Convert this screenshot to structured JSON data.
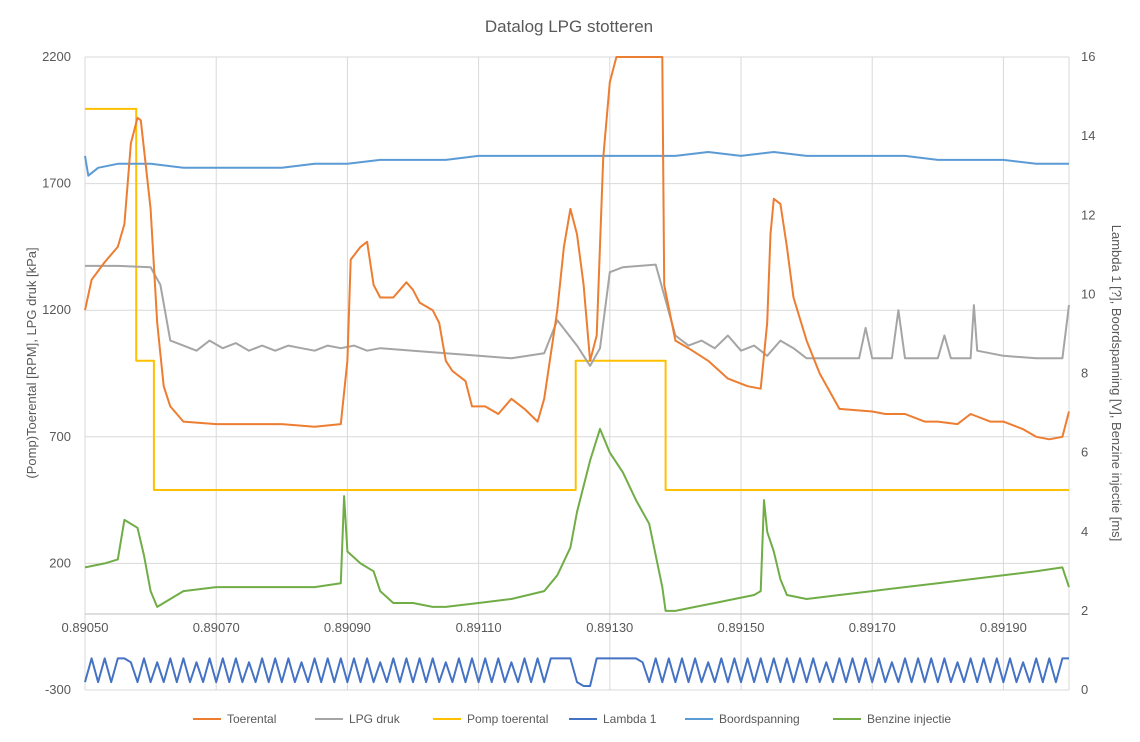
{
  "chart_data": {
    "type": "line",
    "title": "Datalog LPG stotteren",
    "ylabel_left": "(Pomp)Toerental [RPM], LPG druk [kPa]",
    "ylabel_right": "Lambda 1 [?], Boordspanning [V], Benzine injectie [ms]",
    "xlim": [
      0.8905,
      0.892
    ],
    "ylim_left": [
      -300,
      2200
    ],
    "ylim_right": [
      0,
      16
    ],
    "left_ticks": [
      "-300",
      "200",
      "700",
      "1200",
      "1700",
      "2200"
    ],
    "right_ticks": [
      "0",
      "2",
      "4",
      "6",
      "8",
      "10",
      "12",
      "14",
      "16"
    ],
    "x_ticks": [
      "0.89050",
      "0.89070",
      "0.89090",
      "0.89110",
      "0.89130",
      "0.89150",
      "0.89170",
      "0.89190"
    ],
    "grid": true,
    "legend_position": "bottom",
    "series": [
      {
        "name": "Toerental",
        "axis": "left",
        "color": "#ED7D31",
        "x": [
          0.8905,
          0.89051,
          0.89053,
          0.89055,
          0.89056,
          0.89057,
          0.89058,
          0.890585,
          0.8906,
          0.89061,
          0.89062,
          0.89063,
          0.89065,
          0.8907,
          0.8908,
          0.89085,
          0.89089,
          0.8909,
          0.890905,
          0.89092,
          0.89093,
          0.89094,
          0.89095,
          0.89097,
          0.89099,
          0.891,
          0.89101,
          0.89103,
          0.89104,
          0.89105,
          0.89106,
          0.89108,
          0.89109,
          0.89111,
          0.89113,
          0.89115,
          0.89117,
          0.89119,
          0.8912,
          0.89122,
          0.89123,
          0.89124,
          0.89125,
          0.89126,
          0.89127,
          0.89128,
          0.89129,
          0.8913,
          0.89131,
          0.89132,
          0.89134,
          0.89136,
          0.89138,
          0.891383,
          0.8914,
          0.89142,
          0.89145,
          0.89148,
          0.89151,
          0.89153,
          0.89154,
          0.891545,
          0.89155,
          0.89156,
          0.89157,
          0.89158,
          0.8916,
          0.89162,
          0.89165,
          0.8917,
          0.89172,
          0.89175,
          0.89178,
          0.8918,
          0.89183,
          0.89185,
          0.89188,
          0.8919,
          0.89193,
          0.89195,
          0.89197,
          0.89199,
          0.892
        ],
        "y": [
          1200,
          1320,
          1390,
          1450,
          1540,
          1860,
          1960,
          1950,
          1600,
          1150,
          900,
          820,
          760,
          750,
          750,
          740,
          750,
          1000,
          1400,
          1450,
          1470,
          1300,
          1250,
          1250,
          1310,
          1280,
          1230,
          1200,
          1150,
          1000,
          960,
          920,
          820,
          820,
          790,
          850,
          810,
          760,
          850,
          1200,
          1450,
          1600,
          1500,
          1300,
          1000,
          1100,
          1800,
          2100,
          2200,
          2200,
          2200,
          2200,
          2200,
          1300,
          1080,
          1050,
          1000,
          930,
          900,
          890,
          1150,
          1500,
          1640,
          1620,
          1450,
          1250,
          1080,
          950,
          810,
          800,
          790,
          790,
          760,
          760,
          750,
          790,
          760,
          760,
          730,
          700,
          690,
          700,
          800
        ]
      },
      {
        "name": "LPG druk",
        "axis": "left",
        "color": "#A5A5A5",
        "x": [
          0.8905,
          0.89055,
          0.8906,
          0.890615,
          0.89063,
          0.89065,
          0.89067,
          0.89069,
          0.89071,
          0.89073,
          0.89075,
          0.89077,
          0.89079,
          0.89081,
          0.89083,
          0.89085,
          0.89087,
          0.89089,
          0.89091,
          0.89093,
          0.89095,
          0.891,
          0.89105,
          0.8911,
          0.89115,
          0.8912,
          0.89122,
          0.89125,
          0.89127,
          0.891285,
          0.8913,
          0.89132,
          0.89137,
          0.8914,
          0.89142,
          0.89144,
          0.89146,
          0.89148,
          0.8915,
          0.89152,
          0.89154,
          0.89156,
          0.89158,
          0.8916,
          0.89165,
          0.89168,
          0.89169,
          0.8917,
          0.89173,
          0.89174,
          0.89175,
          0.8918,
          0.89181,
          0.89182,
          0.89185,
          0.891855,
          0.89186,
          0.8919,
          0.89195,
          0.89199,
          0.892
        ],
        "y": [
          1375,
          1375,
          1370,
          1300,
          1080,
          1060,
          1040,
          1080,
          1050,
          1070,
          1040,
          1060,
          1040,
          1060,
          1050,
          1040,
          1060,
          1050,
          1060,
          1040,
          1050,
          1040,
          1030,
          1020,
          1010,
          1030,
          1160,
          1060,
          980,
          1050,
          1350,
          1370,
          1380,
          1100,
          1060,
          1080,
          1050,
          1100,
          1040,
          1060,
          1020,
          1080,
          1050,
          1010,
          1010,
          1010,
          1130,
          1010,
          1010,
          1200,
          1010,
          1010,
          1100,
          1010,
          1010,
          1220,
          1040,
          1020,
          1010,
          1010,
          1220
        ]
      },
      {
        "name": "Pomp toerental",
        "axis": "left",
        "color": "#FFC000",
        "x": [
          0.8905,
          0.890578,
          0.890578,
          0.890605,
          0.890605,
          0.891248,
          0.891248,
          0.891385,
          0.891385,
          0.892
        ],
        "y": [
          1995,
          1995,
          1000,
          1000,
          490,
          490,
          1000,
          1000,
          490,
          490
        ]
      },
      {
        "name": "Lambda 1",
        "axis": "right",
        "color": "#4472C4",
        "x": [
          0.8905,
          0.89051,
          0.89052,
          0.89053,
          0.89054,
          0.89055,
          0.89056,
          0.89057,
          0.89058,
          0.89059,
          0.8906,
          0.89061,
          0.89062,
          0.89063,
          0.89064,
          0.89065,
          0.89066,
          0.89067,
          0.89068,
          0.89069,
          0.8907,
          0.89071,
          0.89072,
          0.89073,
          0.89074,
          0.89075,
          0.89076,
          0.89077,
          0.89078,
          0.89079,
          0.8908,
          0.89081,
          0.89082,
          0.89083,
          0.89084,
          0.89085,
          0.89086,
          0.89087,
          0.89088,
          0.89089,
          0.8909,
          0.89091,
          0.89092,
          0.89093,
          0.89094,
          0.89095,
          0.89096,
          0.89097,
          0.89098,
          0.89099,
          0.891,
          0.89101,
          0.89102,
          0.89103,
          0.89104,
          0.89105,
          0.89106,
          0.89107,
          0.89108,
          0.89109,
          0.8911,
          0.89111,
          0.89112,
          0.89113,
          0.89114,
          0.89115,
          0.89116,
          0.89117,
          0.89118,
          0.89119,
          0.8912,
          0.89121,
          0.89122,
          0.89123,
          0.89124,
          0.89125,
          0.89126,
          0.89127,
          0.89128,
          0.89129,
          0.8913,
          0.89131,
          0.89132,
          0.89133,
          0.89134,
          0.89135,
          0.89136,
          0.89137,
          0.89138,
          0.89139,
          0.8914,
          0.89141,
          0.89142,
          0.89143,
          0.89144,
          0.89145,
          0.89146,
          0.89147,
          0.89148,
          0.89149,
          0.8915,
          0.89151,
          0.89152,
          0.89153,
          0.89154,
          0.89155,
          0.89156,
          0.89157,
          0.89158,
          0.89159,
          0.8916,
          0.89161,
          0.89162,
          0.89163,
          0.89164,
          0.89165,
          0.89166,
          0.89167,
          0.89168,
          0.89169,
          0.8917,
          0.89171,
          0.89172,
          0.89173,
          0.89174,
          0.89175,
          0.89176,
          0.89177,
          0.89178,
          0.89179,
          0.8918,
          0.89181,
          0.89182,
          0.89183,
          0.89184,
          0.89185,
          0.89186,
          0.89187,
          0.89188,
          0.89189,
          0.8919,
          0.89191,
          0.89192,
          0.89193,
          0.89194,
          0.89195,
          0.89196,
          0.89197,
          0.89198,
          0.89199,
          0.892
        ],
        "y": [
          0.2,
          0.8,
          0.2,
          0.8,
          0.2,
          0.8,
          0.8,
          0.7,
          0.2,
          0.8,
          0.2,
          0.7,
          0.2,
          0.8,
          0.2,
          0.8,
          0.2,
          0.7,
          0.2,
          0.8,
          0.2,
          0.8,
          0.2,
          0.8,
          0.2,
          0.7,
          0.2,
          0.8,
          0.2,
          0.8,
          0.2,
          0.8,
          0.2,
          0.7,
          0.2,
          0.8,
          0.2,
          0.8,
          0.2,
          0.8,
          0.2,
          0.8,
          0.2,
          0.8,
          0.2,
          0.7,
          0.2,
          0.8,
          0.2,
          0.8,
          0.2,
          0.8,
          0.2,
          0.8,
          0.2,
          0.7,
          0.2,
          0.8,
          0.2,
          0.8,
          0.2,
          0.8,
          0.2,
          0.8,
          0.2,
          0.7,
          0.2,
          0.8,
          0.2,
          0.8,
          0.2,
          0.8,
          0.8,
          0.8,
          0.8,
          0.2,
          0.1,
          0.1,
          0.8,
          0.8,
          0.8,
          0.8,
          0.8,
          0.8,
          0.8,
          0.7,
          0.2,
          0.8,
          0.2,
          0.8,
          0.2,
          0.8,
          0.2,
          0.8,
          0.2,
          0.7,
          0.2,
          0.8,
          0.2,
          0.8,
          0.2,
          0.8,
          0.2,
          0.8,
          0.2,
          0.8,
          0.2,
          0.8,
          0.2,
          0.8,
          0.2,
          0.8,
          0.2,
          0.7,
          0.2,
          0.8,
          0.2,
          0.8,
          0.2,
          0.8,
          0.2,
          0.8,
          0.2,
          0.7,
          0.2,
          0.8,
          0.2,
          0.8,
          0.2,
          0.8,
          0.2,
          0.8,
          0.2,
          0.7,
          0.2,
          0.8,
          0.2,
          0.8,
          0.2,
          0.8,
          0.2,
          0.8,
          0.2,
          0.7,
          0.2,
          0.8,
          0.2,
          0.8,
          0.2,
          0.8,
          0.8
        ]
      },
      {
        "name": "Boordspanning",
        "axis": "right",
        "color": "#5B9BD5",
        "x": [
          0.8905,
          0.890505,
          0.89052,
          0.89055,
          0.8906,
          0.89065,
          0.8907,
          0.89075,
          0.8908,
          0.89085,
          0.8909,
          0.89095,
          0.891,
          0.89105,
          0.8911,
          0.89115,
          0.8912,
          0.89125,
          0.8913,
          0.89135,
          0.8914,
          0.89145,
          0.8915,
          0.89155,
          0.8916,
          0.89165,
          0.8917,
          0.89175,
          0.8918,
          0.89185,
          0.8919,
          0.89195,
          0.892
        ],
        "y": [
          13.5,
          13.0,
          13.2,
          13.3,
          13.3,
          13.2,
          13.2,
          13.2,
          13.2,
          13.3,
          13.3,
          13.4,
          13.4,
          13.4,
          13.5,
          13.5,
          13.5,
          13.5,
          13.5,
          13.5,
          13.5,
          13.6,
          13.5,
          13.6,
          13.5,
          13.5,
          13.5,
          13.5,
          13.4,
          13.4,
          13.4,
          13.3,
          13.3
        ]
      },
      {
        "name": "Benzine injectie",
        "axis": "right",
        "color": "#70AD47",
        "x": [
          0.8905,
          0.89053,
          0.89055,
          0.89056,
          0.89058,
          0.89059,
          0.8906,
          0.89061,
          0.89063,
          0.89065,
          0.8907,
          0.8908,
          0.89085,
          0.89089,
          0.890895,
          0.8909,
          0.89092,
          0.89094,
          0.89095,
          0.89097,
          0.891,
          0.89103,
          0.89105,
          0.8911,
          0.89115,
          0.8912,
          0.89122,
          0.89124,
          0.89125,
          0.89127,
          0.891285,
          0.8913,
          0.89132,
          0.89134,
          0.89136,
          0.89138,
          0.891385,
          0.8914,
          0.89143,
          0.89146,
          0.89149,
          0.89152,
          0.89153,
          0.891535,
          0.89154,
          0.89155,
          0.89156,
          0.89157,
          0.8916,
          0.89165,
          0.8917,
          0.89175,
          0.8918,
          0.89185,
          0.8919,
          0.89195,
          0.89199,
          0.892
        ],
        "y": [
          3.1,
          3.2,
          3.3,
          4.3,
          4.1,
          3.4,
          2.5,
          2.1,
          2.3,
          2.5,
          2.6,
          2.6,
          2.6,
          2.7,
          4.9,
          3.5,
          3.2,
          3.0,
          2.5,
          2.2,
          2.2,
          2.1,
          2.1,
          2.2,
          2.3,
          2.5,
          2.9,
          3.6,
          4.5,
          5.8,
          6.6,
          6.0,
          5.5,
          4.8,
          4.2,
          2.6,
          2.0,
          2.0,
          2.1,
          2.2,
          2.3,
          2.4,
          2.5,
          4.8,
          4.0,
          3.5,
          2.8,
          2.4,
          2.3,
          2.4,
          2.5,
          2.6,
          2.7,
          2.8,
          2.9,
          3.0,
          3.1,
          2.6
        ]
      }
    ]
  }
}
